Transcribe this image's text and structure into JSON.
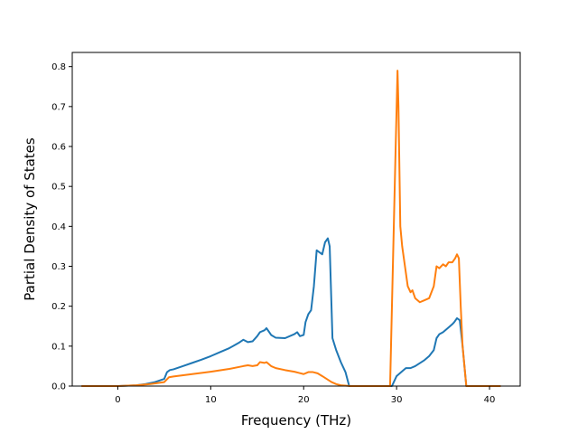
{
  "chart_data": {
    "type": "line",
    "title": "",
    "xlabel": "Frequency (THz)",
    "ylabel": "Partial Density of States",
    "xlim": [
      -4.9,
      43.3
    ],
    "ylim": [
      0.0,
      0.8355
    ],
    "xticks": [
      0,
      10,
      20,
      30,
      40
    ],
    "yticks": [
      0.0,
      0.1,
      0.2,
      0.3,
      0.4,
      0.5,
      0.6,
      0.7,
      0.8
    ],
    "ytick_labels": [
      "0.0",
      "0.1",
      "0.2",
      "0.3",
      "0.4",
      "0.5",
      "0.6",
      "0.7",
      "0.8"
    ],
    "grid": false,
    "legend": "none",
    "series": [
      {
        "color": "#1f77b4",
        "x": [
          -3.9,
          0,
          2,
          3,
          4,
          5,
          5.3,
          5.6,
          6,
          7,
          8,
          9,
          10,
          11,
          12,
          13,
          13.5,
          14,
          14.5,
          15,
          15.3,
          15.8,
          16,
          16.5,
          17,
          18,
          19,
          19.3,
          19.6,
          20,
          20.2,
          20.5,
          20.8,
          21.1,
          21.4,
          21.7,
          22.0,
          22.3,
          22.6,
          22.8,
          23.1,
          23.5,
          24,
          24.5,
          24.9,
          29.5,
          30,
          30.5,
          31,
          31.5,
          32,
          33,
          33.5,
          34,
          34.3,
          34.6,
          35,
          35.5,
          36,
          36.2,
          36.5,
          36.8,
          37.1,
          37.3,
          37.5,
          41.2
        ],
        "y": [
          0.0,
          0.0,
          0.002,
          0.005,
          0.01,
          0.018,
          0.035,
          0.04,
          0.042,
          0.05,
          0.058,
          0.066,
          0.075,
          0.085,
          0.095,
          0.108,
          0.116,
          0.11,
          0.112,
          0.125,
          0.135,
          0.14,
          0.145,
          0.128,
          0.121,
          0.12,
          0.13,
          0.135,
          0.125,
          0.128,
          0.16,
          0.18,
          0.19,
          0.25,
          0.34,
          0.335,
          0.33,
          0.36,
          0.37,
          0.35,
          0.12,
          0.09,
          0.06,
          0.035,
          0.0,
          0.0,
          0.025,
          0.035,
          0.045,
          0.045,
          0.05,
          0.065,
          0.075,
          0.09,
          0.12,
          0.13,
          0.135,
          0.145,
          0.155,
          0.16,
          0.17,
          0.165,
          0.1,
          0.05,
          0.0,
          0.0
        ]
      },
      {
        "color": "#ff7f0e",
        "x": [
          -3.9,
          0,
          2,
          3.5,
          5,
          5.5,
          6,
          8,
          10,
          12,
          13.5,
          14,
          14.5,
          15,
          15.3,
          15.8,
          16,
          16.5,
          17,
          18,
          19,
          19.5,
          20,
          20.5,
          21,
          21.5,
          22,
          23,
          23.5,
          24,
          25,
          29.3,
          29.6,
          29.9,
          30.1,
          30.2,
          30.4,
          30.6,
          30.9,
          31.2,
          31.5,
          31.7,
          32,
          32.5,
          33,
          33.5,
          34,
          34.3,
          34.6,
          35,
          35.3,
          35.6,
          36,
          36.3,
          36.5,
          36.7,
          36.9,
          37.1,
          37.5,
          41.2
        ],
        "y": [
          0.0,
          0.0,
          0.002,
          0.005,
          0.01,
          0.022,
          0.024,
          0.03,
          0.036,
          0.043,
          0.05,
          0.052,
          0.05,
          0.052,
          0.06,
          0.058,
          0.06,
          0.05,
          0.045,
          0.04,
          0.036,
          0.033,
          0.03,
          0.035,
          0.035,
          0.032,
          0.025,
          0.01,
          0.005,
          0.002,
          0.0,
          0.0,
          0.3,
          0.6,
          0.79,
          0.7,
          0.4,
          0.35,
          0.3,
          0.25,
          0.235,
          0.24,
          0.22,
          0.21,
          0.215,
          0.22,
          0.25,
          0.3,
          0.295,
          0.305,
          0.3,
          0.31,
          0.31,
          0.32,
          0.33,
          0.32,
          0.2,
          0.1,
          0.0,
          0.0
        ]
      }
    ]
  }
}
